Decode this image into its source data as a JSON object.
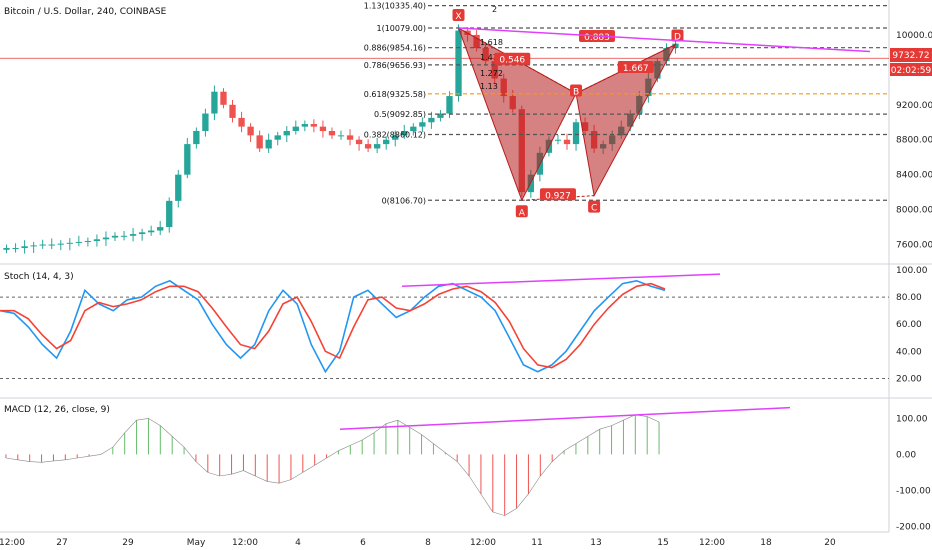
{
  "header": {
    "symbol_title": "Bitcoin / U.S. Dollar, 240, COINBASE"
  },
  "price_panel": {
    "last_price": "9732.72",
    "countdown": "02:02:59",
    "fib_levels": [
      {
        "label": "1.13(10335.40)",
        "value": 10335.4
      },
      {
        "label": "1(10079.00)",
        "value": 10079.0
      },
      {
        "label": "0.886(9854.16)",
        "value": 9854.16
      },
      {
        "label": "0.786(9656.93)",
        "value": 9656.93
      },
      {
        "label": "0.618(9325.58)",
        "value": 9325.58
      },
      {
        "label": "0.5(9092.85)",
        "value": 9092.85
      },
      {
        "label": "0.382(8860.12)",
        "value": 8860.12
      },
      {
        "label": "0(8106.70)",
        "value": 8106.7
      }
    ],
    "pattern_points": [
      "X",
      "A",
      "B",
      "C",
      "D"
    ],
    "pattern_ratios": [
      "0.883",
      "0.546",
      "0.927",
      "1.667"
    ],
    "ext_labels": [
      "2",
      "1.618",
      "1.414",
      "1.272",
      "1.13"
    ]
  },
  "stoch_panel": {
    "title": "Stoch (14, 4, 3)"
  },
  "macd_panel": {
    "title": "MACD (12, 26, close, 9)"
  },
  "colors": {
    "up": "#26a69a",
    "down": "#ef5350",
    "pattern_fill": "#b71c1c",
    "trendline": "#e040fb",
    "fib_line": "#555555",
    "fib_orange": "#ff9800",
    "stoch_k": "#2196f3",
    "stoch_d": "#f44336",
    "hist_up": "#66bb6a",
    "hist_down": "#ef5350"
  },
  "chart_data": [
    {
      "type": "line",
      "title": "Bitcoin / U.S. Dollar, 240, COINBASE",
      "y_ticks": [
        7600,
        8000,
        8400,
        8800,
        9200,
        9600,
        10000
      ],
      "x_tick_labels": [
        "12:00",
        "27",
        "29",
        "May",
        "12:00",
        "4",
        "6",
        "8",
        "12:00",
        "11",
        "13",
        "15",
        "12:00",
        "18",
        "20"
      ],
      "close_series": [
        7560,
        7560,
        7580,
        7590,
        7600,
        7600,
        7610,
        7620,
        7630,
        7640,
        7660,
        7680,
        7700,
        7700,
        7720,
        7740,
        7760,
        7800,
        8100,
        8400,
        8750,
        8900,
        9100,
        9350,
        9200,
        9050,
        8950,
        8850,
        8700,
        8800,
        8850,
        8900,
        8950,
        8980,
        8950,
        8900,
        8850,
        8850,
        8800,
        8750,
        8700,
        8750,
        8800,
        8850,
        8900,
        8950,
        9000,
        9050,
        9100,
        9300,
        10050,
        10000,
        9850,
        9700,
        9500,
        9300,
        9150,
        8200,
        8400,
        8650,
        8800,
        8800,
        8750,
        9000,
        8900,
        8700,
        8750,
        8850,
        8950,
        9100,
        9300,
        9500,
        9700,
        9850,
        9900
      ],
      "price_min": 7400,
      "price_max": 10400
    },
    {
      "type": "line",
      "title": "Stoch (14, 4, 3)",
      "y_ticks": [
        20,
        40,
        60,
        80,
        100
      ],
      "series": [
        {
          "name": "%K",
          "values": [
            70,
            68,
            58,
            45,
            35,
            55,
            85,
            75,
            70,
            78,
            80,
            88,
            92,
            85,
            78,
            60,
            45,
            35,
            45,
            70,
            85,
            75,
            45,
            25,
            40,
            80,
            85,
            75,
            65,
            70,
            80,
            88,
            90,
            85,
            80,
            70,
            50,
            30,
            25,
            30,
            40,
            55,
            70,
            80,
            90,
            92,
            88,
            85
          ]
        },
        {
          "name": "%D",
          "values": [
            70,
            70,
            64,
            52,
            42,
            48,
            70,
            76,
            73,
            75,
            78,
            84,
            88,
            88,
            84,
            72,
            58,
            45,
            42,
            55,
            75,
            80,
            62,
            40,
            35,
            58,
            78,
            80,
            72,
            70,
            75,
            82,
            86,
            88,
            84,
            76,
            62,
            42,
            30,
            28,
            34,
            45,
            60,
            72,
            82,
            88,
            90,
            86
          ]
        }
      ],
      "ylim": [
        10,
        100
      ]
    },
    {
      "type": "bar",
      "title": "MACD (12, 26, close, 9)",
      "y_ticks": [
        -200,
        -100,
        0,
        100
      ],
      "values": [
        -10,
        -15,
        -20,
        -22,
        -18,
        -15,
        -10,
        -5,
        0,
        20,
        60,
        95,
        100,
        80,
        50,
        20,
        -20,
        -50,
        -60,
        -55,
        -45,
        -60,
        -75,
        -80,
        -70,
        -50,
        -30,
        -10,
        10,
        25,
        40,
        60,
        85,
        95,
        75,
        55,
        30,
        5,
        -20,
        -60,
        -110,
        -160,
        -170,
        -150,
        -110,
        -60,
        -20,
        10,
        30,
        50,
        70,
        80,
        95,
        110,
        105,
        90
      ],
      "ylim": [
        -210,
        140
      ]
    }
  ]
}
